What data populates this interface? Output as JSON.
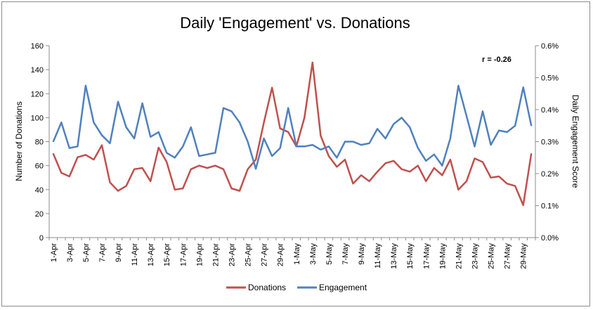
{
  "chart_data": {
    "type": "line",
    "title": "Daily 'Engagement' vs. Donations",
    "ylabel": "Number of Donations",
    "y2label": "Daily Engagement Score",
    "ylim": [
      0,
      160
    ],
    "y2lim": [
      0,
      0.006
    ],
    "yticks": [
      "0",
      "20",
      "40",
      "60",
      "80",
      "100",
      "120",
      "140",
      "160"
    ],
    "y2ticks": [
      "0.0%",
      "0.1%",
      "0.2%",
      "0.3%",
      "0.4%",
      "0.5%",
      "0.6%"
    ],
    "grid": false,
    "legend": "bottom",
    "annotation": "r = -0.26",
    "x": [
      "1-Apr",
      "2-Apr",
      "3-Apr",
      "4-Apr",
      "5-Apr",
      "6-Apr",
      "7-Apr",
      "8-Apr",
      "9-Apr",
      "10-Apr",
      "11-Apr",
      "12-Apr",
      "13-Apr",
      "14-Apr",
      "15-Apr",
      "16-Apr",
      "17-Apr",
      "18-Apr",
      "19-Apr",
      "20-Apr",
      "21-Apr",
      "22-Apr",
      "23-Apr",
      "24-Apr",
      "25-Apr",
      "26-Apr",
      "27-Apr",
      "28-Apr",
      "29-Apr",
      "30-Apr",
      "1-May",
      "2-May",
      "3-May",
      "4-May",
      "5-May",
      "6-May",
      "7-May",
      "8-May",
      "9-May",
      "10-May",
      "11-May",
      "12-May",
      "13-May",
      "14-May",
      "15-May",
      "16-May",
      "17-May",
      "18-May",
      "19-May",
      "20-May",
      "21-May",
      "22-May",
      "23-May",
      "24-May",
      "25-May",
      "26-May",
      "27-May",
      "28-May",
      "29-May",
      "30-May"
    ],
    "xticklabels": [
      "1-Apr",
      "3-Apr",
      "5-Apr",
      "7-Apr",
      "9-Apr",
      "11-Apr",
      "13-Apr",
      "15-Apr",
      "17-Apr",
      "19-Apr",
      "21-Apr",
      "23-Apr",
      "25-Apr",
      "27-Apr",
      "29-Apr",
      "1-May",
      "3-May",
      "5-May",
      "7-May",
      "9-May",
      "11-May",
      "13-May",
      "15-May",
      "17-May",
      "19-May",
      "21-May",
      "23-May",
      "25-May",
      "27-May",
      "29-May"
    ],
    "series": [
      {
        "name": "Donations",
        "axis": "left",
        "color": "#c0504d",
        "values": [
          70,
          54,
          51,
          67,
          69,
          65,
          77,
          46,
          39,
          43,
          57,
          58,
          47,
          75,
          63,
          40,
          41,
          57,
          60,
          58,
          60,
          57,
          41,
          39,
          57,
          65,
          96,
          125,
          91,
          88,
          76,
          100,
          146,
          85,
          68,
          59,
          65,
          45,
          52,
          47,
          55,
          62,
          64,
          57,
          55,
          60,
          47,
          58,
          52,
          65,
          40,
          47,
          66,
          63,
          50,
          51,
          45,
          43,
          27,
          70
        ]
      },
      {
        "name": "Engagement",
        "axis": "right",
        "color": "#4f81bd",
        "values": [
          0.003,
          0.0036,
          0.0028,
          0.00285,
          0.00475,
          0.0036,
          0.0032,
          0.00295,
          0.00425,
          0.00345,
          0.0031,
          0.0042,
          0.00315,
          0.0033,
          0.00265,
          0.0025,
          0.00285,
          0.00345,
          0.00255,
          0.0026,
          0.00265,
          0.00405,
          0.00395,
          0.0036,
          0.003,
          0.00215,
          0.0031,
          0.00255,
          0.0028,
          0.00405,
          0.00285,
          0.00285,
          0.0029,
          0.00275,
          0.00285,
          0.0025,
          0.003,
          0.003,
          0.0029,
          0.00295,
          0.0034,
          0.0031,
          0.00355,
          0.00375,
          0.00345,
          0.0028,
          0.0024,
          0.0026,
          0.00225,
          0.0031,
          0.00475,
          0.0038,
          0.00285,
          0.00395,
          0.0029,
          0.00335,
          0.0033,
          0.0035,
          0.0047,
          0.0035
        ]
      }
    ]
  }
}
